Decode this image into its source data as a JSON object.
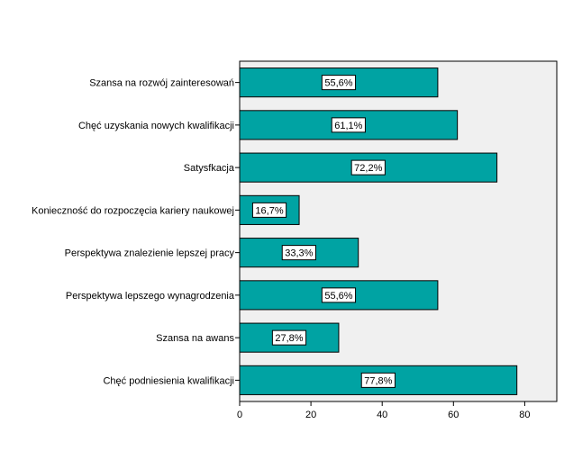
{
  "chart_data": {
    "type": "bar",
    "orientation": "horizontal",
    "categories": [
      "Szansa na rozwój zainteresowań",
      "Chęć uzyskania nowych kwalifikacji",
      "Satysfkacja",
      "Konieczność do rozpoczęcia kariery naukowej",
      "Perspektywa znalezienie lepszej pracy",
      "Perspektywa lepszego wynagrodzenia",
      "Szansa na awans",
      "Chęć podniesienia kwalifikacji"
    ],
    "values": [
      55.6,
      61.1,
      72.2,
      16.7,
      33.3,
      55.6,
      27.8,
      77.8
    ],
    "data_labels": [
      "55,6%",
      "61,1%",
      "72,2%",
      "16,7%",
      "33,3%",
      "55,6%",
      "27,8%",
      "77,8%"
    ],
    "x_ticks": [
      "0",
      "20",
      "40",
      "60",
      "80"
    ],
    "xlim": [
      0,
      89
    ],
    "title": "",
    "xlabel": "",
    "ylabel": "",
    "grid": false,
    "colors": {
      "bar": "#00a3a3",
      "plot_background": "#f0f0f0",
      "axis": "#000000",
      "label_box": "#ffffff"
    }
  }
}
